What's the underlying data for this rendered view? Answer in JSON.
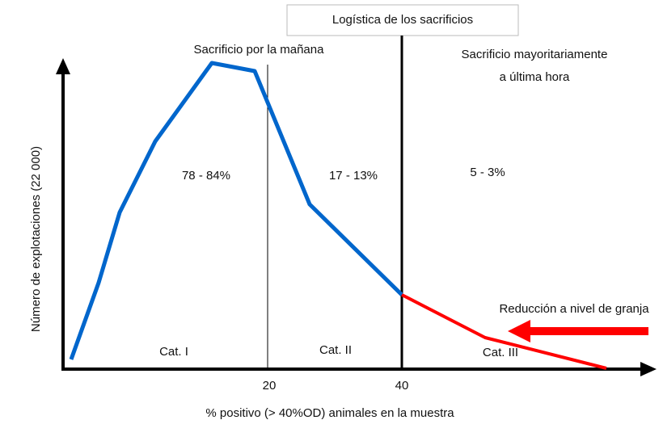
{
  "title": "Logística de los sacrificios",
  "morning_heading": "Sacrificio por la mañana",
  "late_heading": [
    "Sacrificio mayoritariamente",
    "a última hora"
  ],
  "shares": [
    "78 - 84%",
    "17 - 13%",
    "5 - 3%"
  ],
  "categories": [
    "Cat. I",
    "Cat. II",
    "Cat. III"
  ],
  "x_ticks": [
    "20",
    "40"
  ],
  "x_axis_label": "% positivo (> 40%OD) animales en la muestra",
  "y_axis_label": "Número de explotaciones (22 000)",
  "arrow_label": "Reducción a nivel de granja"
}
